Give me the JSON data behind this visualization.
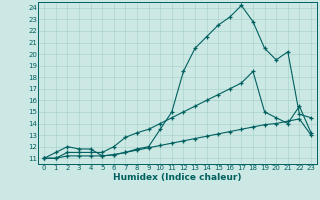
{
  "xlabel": "Humidex (Indice chaleur)",
  "bg_color": "#cce8e4",
  "grid_color": "#aad4cc",
  "line_color": "#006060",
  "xlim": [
    -0.5,
    23.5
  ],
  "ylim": [
    10.5,
    24.5
  ],
  "xticks": [
    0,
    1,
    2,
    3,
    4,
    5,
    6,
    7,
    8,
    9,
    10,
    11,
    12,
    13,
    14,
    15,
    16,
    17,
    18,
    19,
    20,
    21,
    22,
    23
  ],
  "yticks": [
    11,
    12,
    13,
    14,
    15,
    16,
    17,
    18,
    19,
    20,
    21,
    22,
    23,
    24
  ],
  "line1_x": [
    0,
    1,
    2,
    3,
    4,
    5,
    6,
    7,
    8,
    9,
    10,
    11,
    12,
    13,
    14,
    15,
    16,
    17,
    18,
    19,
    20,
    21,
    22,
    23
  ],
  "line1_y": [
    11,
    11.5,
    12.0,
    11.8,
    11.8,
    11.2,
    11.3,
    11.5,
    11.8,
    12.0,
    13.5,
    15.0,
    18.5,
    20.5,
    21.5,
    22.5,
    23.2,
    24.2,
    22.8,
    20.5,
    19.5,
    20.2,
    14.8,
    14.5
  ],
  "line2_x": [
    0,
    1,
    2,
    3,
    4,
    5,
    6,
    7,
    8,
    9,
    10,
    11,
    12,
    13,
    14,
    15,
    16,
    17,
    18,
    19,
    20,
    21,
    22,
    23
  ],
  "line2_y": [
    11,
    11,
    11.5,
    11.5,
    11.5,
    11.5,
    12.0,
    12.8,
    13.2,
    13.5,
    14.0,
    14.5,
    15.0,
    15.5,
    16.0,
    16.5,
    17.0,
    17.5,
    18.5,
    15.0,
    14.5,
    14.0,
    15.5,
    13.2
  ],
  "line3_x": [
    0,
    1,
    2,
    3,
    4,
    5,
    6,
    7,
    8,
    9,
    10,
    11,
    12,
    13,
    14,
    15,
    16,
    17,
    18,
    19,
    20,
    21,
    22,
    23
  ],
  "line3_y": [
    11,
    11,
    11.2,
    11.2,
    11.2,
    11.2,
    11.3,
    11.5,
    11.7,
    11.9,
    12.1,
    12.3,
    12.5,
    12.7,
    12.9,
    13.1,
    13.3,
    13.5,
    13.7,
    13.9,
    14.0,
    14.2,
    14.4,
    13.0
  ],
  "tick_fontsize": 5.0,
  "xlabel_fontsize": 6.5
}
